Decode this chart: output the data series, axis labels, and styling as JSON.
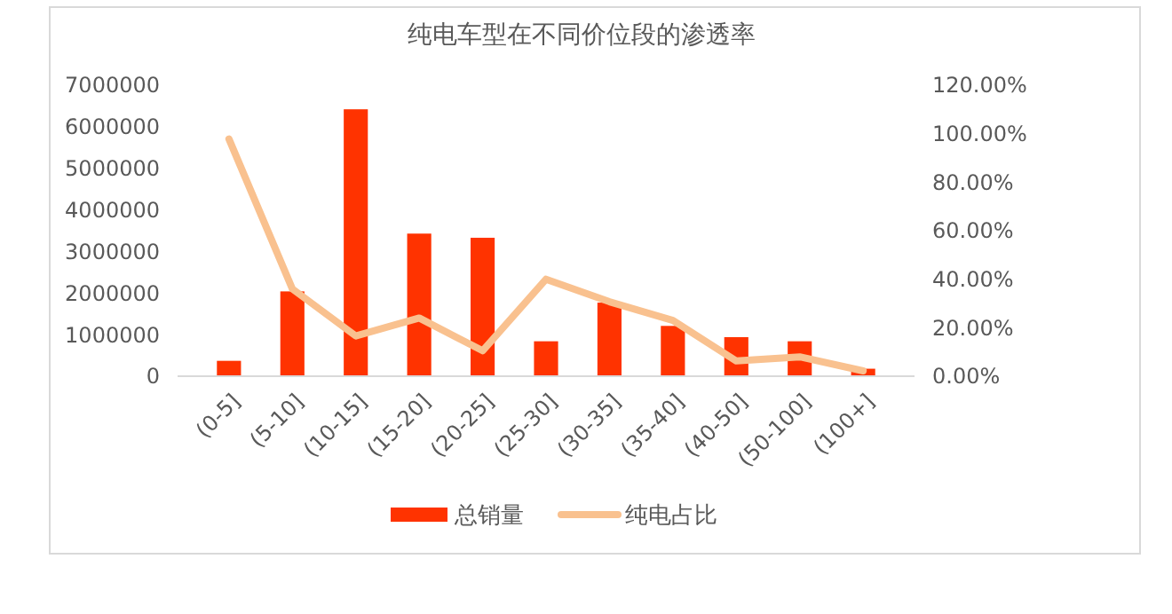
{
  "chart_data": {
    "type": "bar",
    "title": "纯电车型在不同价位段的渗透率",
    "categories": [
      "(0-5]",
      "(5-10]",
      "(10-15]",
      "(15-20]",
      "(20-25]",
      "(25-30]",
      "(30-35]",
      "(35-40]",
      "(40-50]",
      "(50-100]",
      "(100+]"
    ],
    "series": [
      {
        "name": "总销量",
        "color": "#ff3300",
        "values": [
          370000,
          2040000,
          6420000,
          3430000,
          3330000,
          840000,
          1770000,
          1210000,
          940000,
          840000,
          180000
        ]
      },
      {
        "name": "纯电占比",
        "type": "line",
        "axis": "y2",
        "color": "#f9c18f",
        "values": [
          97.8,
          36,
          16.6,
          24,
          10.5,
          40,
          30.7,
          23,
          6.3,
          8,
          2.2
        ]
      }
    ],
    "ylim": [
      0,
      7000000
    ],
    "yticks": [
      0,
      1000000,
      2000000,
      3000000,
      4000000,
      5000000,
      6000000,
      7000000
    ],
    "y2lim": [
      0,
      120
    ],
    "y2ticks": [
      {
        "value": 0,
        "label": "0.00%"
      },
      {
        "value": 20,
        "label": "20.00%"
      },
      {
        "value": 40,
        "label": "40.00%"
      },
      {
        "value": 60,
        "label": "60.00%"
      },
      {
        "value": 80,
        "label": "80.00%"
      },
      {
        "value": 100,
        "label": "100.00%"
      },
      {
        "value": 120,
        "label": "120.00%"
      }
    ],
    "legend": "bottom",
    "grid": false
  }
}
